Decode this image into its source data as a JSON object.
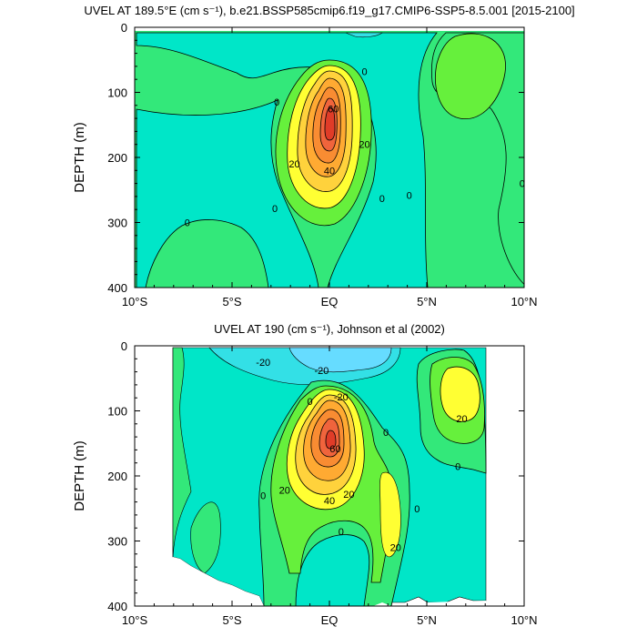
{
  "chart_data": [
    {
      "type": "contour",
      "title": "UVEL AT 189.5°E (cm s⁻¹), b.e21.BSSP585cmip6.f19_g17.CMIP6-SSP5-8.5.001 [2015-2100]",
      "ylabel": "DEPTH (m)",
      "xlabel": "",
      "x_ticks": [
        "10°S",
        "5°S",
        "EQ",
        "5°N",
        "10°N"
      ],
      "x_tick_values": [
        -10,
        -5,
        0,
        5,
        10
      ],
      "y_ticks": [
        "0",
        "100",
        "200",
        "300",
        "400"
      ],
      "y_tick_values": [
        0,
        100,
        200,
        300,
        400
      ],
      "xlim": [
        -10,
        10
      ],
      "ylim": [
        400,
        0
      ],
      "contour_interval": 10,
      "colors": {
        "neg_10": "#33e0e6",
        "neg_0": "#00e6c8",
        "pos_0": "#33e87a",
        "pos_10": "#66f03c",
        "pos_20": "#ffff33",
        "pos_30": "#ffd23c",
        "pos_40": "#ffaa32",
        "pos_50": "#f98c32",
        "pos_60": "#f0643c",
        "pos_70": "#e03c28"
      },
      "contour_labels": [
        {
          "text": "0",
          "lon": -2.7,
          "depth": 115
        },
        {
          "text": "0",
          "lon": 1.8,
          "depth": 68
        },
        {
          "text": "60",
          "lon": 0.2,
          "depth": 125
        },
        {
          "text": "20",
          "lon": 1.8,
          "depth": 180
        },
        {
          "text": "20",
          "lon": -1.8,
          "depth": 210
        },
        {
          "text": "40",
          "lon": 0,
          "depth": 220
        },
        {
          "text": "0",
          "lon": -7.3,
          "depth": 300
        },
        {
          "text": "0",
          "lon": -2.8,
          "depth": 278
        },
        {
          "text": "0",
          "lon": 2.7,
          "depth": 263
        },
        {
          "text": "0",
          "lon": 4.1,
          "depth": 258
        },
        {
          "text": "0",
          "lon": 9.9,
          "depth": 240
        }
      ]
    },
    {
      "type": "contour",
      "title": "UVEL AT 190 (cm s⁻¹), Johnson et al (2002)",
      "ylabel": "DEPTH (m)",
      "xlabel": "",
      "x_ticks": [
        "10°S",
        "5°S",
        "EQ",
        "5°N",
        "10°N"
      ],
      "x_tick_values": [
        -10,
        -5,
        0,
        5,
        10
      ],
      "y_ticks": [
        "0",
        "100",
        "200",
        "300",
        "400"
      ],
      "y_tick_values": [
        0,
        100,
        200,
        300,
        400
      ],
      "xlim": [
        -10,
        10
      ],
      "ylim": [
        400,
        0
      ],
      "data_extent_lon": [
        -8,
        8
      ],
      "contour_interval": 10,
      "contour_labels": [
        {
          "text": "-20",
          "lon": -3.4,
          "depth": 25
        },
        {
          "text": "-20",
          "lon": -0.4,
          "depth": 38
        },
        {
          "text": "-20",
          "lon": 0.6,
          "depth": 78
        },
        {
          "text": "0",
          "lon": -1,
          "depth": 85
        },
        {
          "text": "0",
          "lon": 2.9,
          "depth": 133
        },
        {
          "text": "60",
          "lon": 0.3,
          "depth": 158
        },
        {
          "text": "20",
          "lon": -2.3,
          "depth": 222
        },
        {
          "text": "40",
          "lon": 0,
          "depth": 238
        },
        {
          "text": "20",
          "lon": 1,
          "depth": 228
        },
        {
          "text": "20",
          "lon": 6.8,
          "depth": 112
        },
        {
          "text": "0",
          "lon": 6.6,
          "depth": 185
        },
        {
          "text": "0",
          "lon": -3.4,
          "depth": 230
        },
        {
          "text": "0",
          "lon": 4.5,
          "depth": 250
        },
        {
          "text": "0",
          "lon": 0.6,
          "depth": 285
        },
        {
          "text": "20",
          "lon": 3.4,
          "depth": 310
        }
      ]
    }
  ]
}
